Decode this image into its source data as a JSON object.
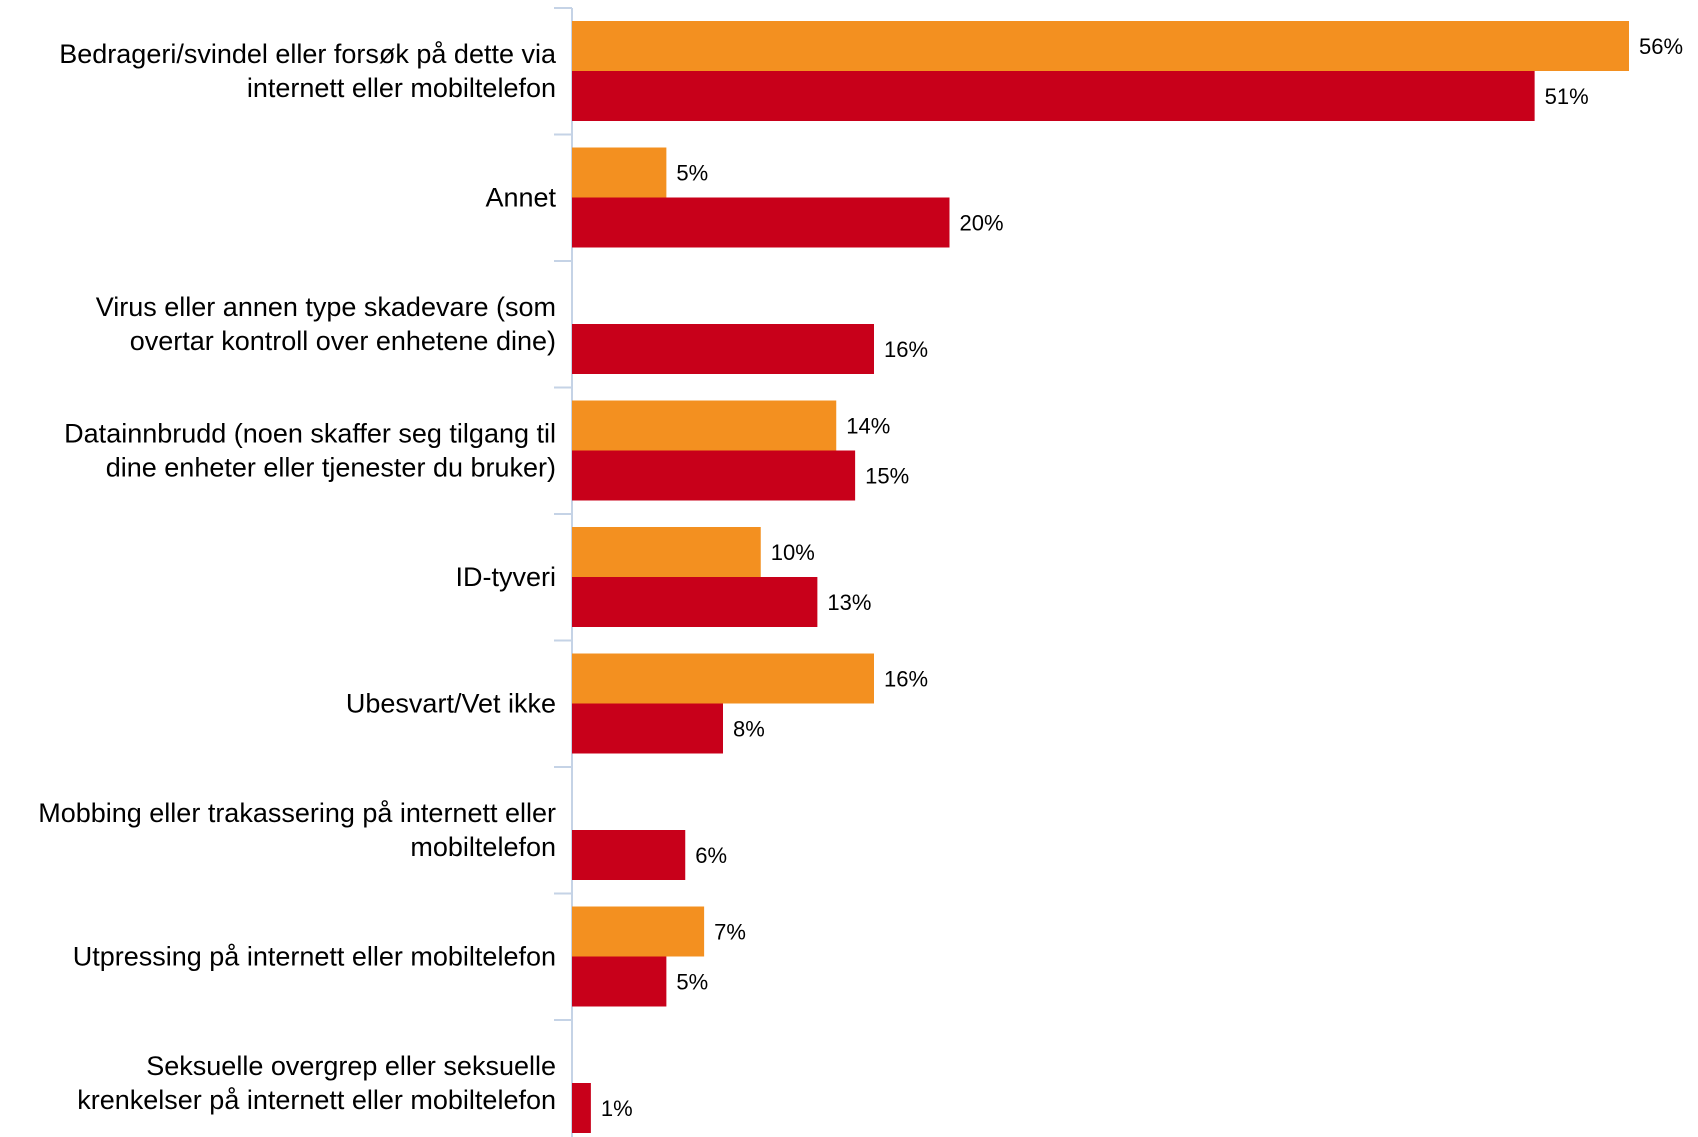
{
  "chart_data": {
    "type": "bar",
    "orientation": "horizontal",
    "categories": [
      [
        "Bedrageri/svindel eller forsøk på dette via",
        "internett eller mobiltelefon"
      ],
      [
        "Annet"
      ],
      [
        "Virus eller annen type skadevare (som",
        "overtar kontroll over enhetene dine)"
      ],
      [
        "Datainnbrudd (noen skaffer seg tilgang til",
        "dine enheter eller tjenester du bruker)"
      ],
      [
        "ID-tyveri"
      ],
      [
        "Ubesvart/Vet ikke"
      ],
      [
        "Mobbing eller trakassering på internett eller",
        "mobiltelefon"
      ],
      [
        "Utpressing på internett eller mobiltelefon"
      ],
      [
        "Seksuelle overgrep eller seksuelle",
        "krenkelser på internett eller mobiltelefon"
      ]
    ],
    "series": [
      {
        "color": "#f39020",
        "values": [
          56,
          5,
          null,
          14,
          10,
          16,
          null,
          7,
          null
        ]
      },
      {
        "color": "#c8001a",
        "values": [
          51,
          20,
          16,
          15,
          13,
          8,
          6,
          5,
          1
        ]
      }
    ],
    "value_suffix": "%",
    "xlim": [
      0,
      56
    ],
    "grid": false,
    "legend": "none",
    "axis_color": "#c5d3e6"
  }
}
